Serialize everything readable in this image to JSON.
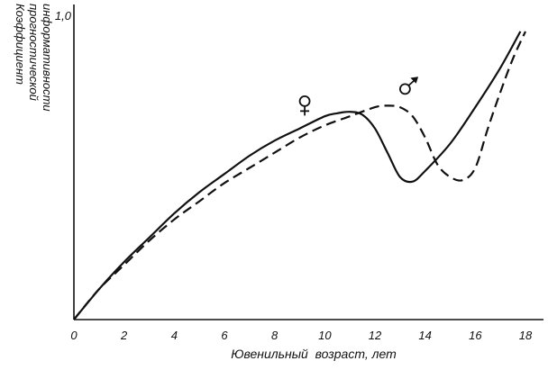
{
  "chart_data": {
    "type": "line",
    "xlabel": "Ювенильный  возраст, лет",
    "ylabel": [
      "Коэффициент",
      "прогностической",
      "информативности"
    ],
    "xlim": [
      0,
      18
    ],
    "ylim": [
      0,
      1.0
    ],
    "x_ticks": [
      "0",
      "2",
      "4",
      "6",
      "8",
      "10",
      "12",
      "14",
      "16",
      "18"
    ],
    "y_ticks": [
      "1,0"
    ],
    "grid": false,
    "series": [
      {
        "name": "♀",
        "style": "solid",
        "x": [
          0,
          1,
          2,
          3,
          4,
          5,
          6,
          7,
          8,
          9,
          10,
          10.5,
          11,
          11.5,
          12,
          12.5,
          13,
          13.5,
          14,
          15,
          16,
          17,
          17.8
        ],
        "y": [
          0,
          0.1,
          0.19,
          0.27,
          0.35,
          0.42,
          0.48,
          0.54,
          0.59,
          0.63,
          0.67,
          0.68,
          0.685,
          0.675,
          0.63,
          0.55,
          0.47,
          0.455,
          0.49,
          0.58,
          0.7,
          0.83,
          0.95
        ]
      },
      {
        "name": "♂",
        "style": "dashed",
        "x": [
          0,
          1,
          2,
          3,
          4,
          5,
          6,
          7,
          8,
          9,
          10,
          11,
          12,
          12.5,
          13,
          13.5,
          14,
          14.5,
          15,
          15.5,
          16,
          16.5,
          17,
          17.5,
          18
        ],
        "y": [
          0,
          0.1,
          0.18,
          0.26,
          0.33,
          0.39,
          0.45,
          0.5,
          0.55,
          0.6,
          0.64,
          0.67,
          0.7,
          0.705,
          0.7,
          0.67,
          0.6,
          0.51,
          0.47,
          0.46,
          0.5,
          0.63,
          0.75,
          0.86,
          0.95
        ]
      }
    ],
    "annotations": [
      {
        "text": "♀",
        "x": 9.2,
        "y": 0.72
      },
      {
        "text": "♂",
        "x": 13.2,
        "y": 0.76
      }
    ]
  }
}
